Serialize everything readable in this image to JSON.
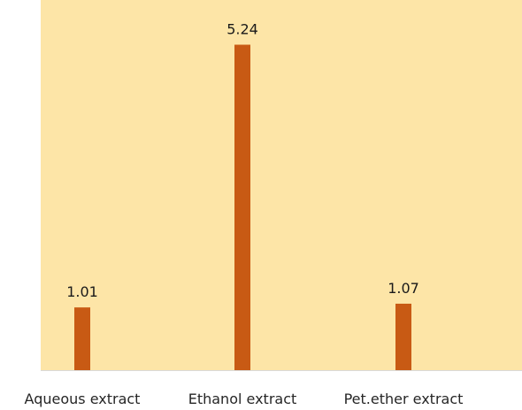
{
  "chart_data": {
    "type": "bar",
    "categories": [
      "Aqueous extract",
      "Ethanol extract",
      "Pet.ether extract"
    ],
    "values": [
      1.01,
      5.24,
      1.07
    ],
    "data_labels": [
      "1.01",
      "5.24",
      "1.07"
    ],
    "title": "",
    "xlabel": "",
    "ylabel": "",
    "ylim": [
      0,
      5.96
    ],
    "grid": false,
    "legend": "none",
    "colors": {
      "plot_background": "#FDE5A7",
      "bar": "#C85A14",
      "axis_line": "#D9D9D9",
      "text": "#262626"
    }
  }
}
